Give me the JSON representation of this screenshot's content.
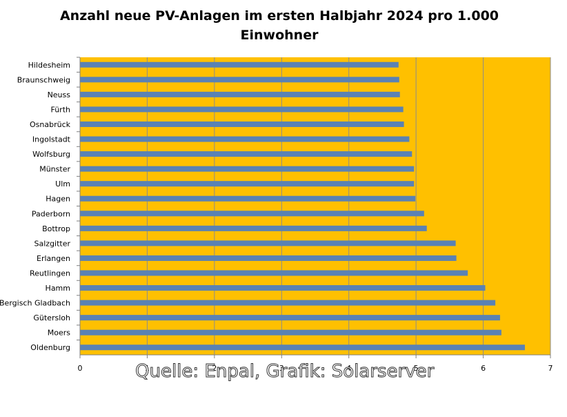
{
  "chart_data": {
    "type": "bar",
    "orientation": "horizontal",
    "title_line1": "Anzahl neue PV-Anlagen im ersten Halbjahr 2024 pro 1.000",
    "title_line2": "Einwohner",
    "categories": [
      "Hildesheim",
      "Braunschweig",
      "Neuss",
      "Fürth",
      "Osnabrück",
      "Ingolstadt",
      "Wolfsburg",
      "Münster",
      "Ulm",
      "Hagen",
      "Paderborn",
      "Bottrop",
      "Salzgitter",
      "Erlangen",
      "Reutlingen",
      "Hamm",
      "Bergisch Gladbach",
      "Gütersloh",
      "Moers",
      "Oldenburg"
    ],
    "values": [
      4.74,
      4.75,
      4.76,
      4.81,
      4.82,
      4.9,
      4.94,
      4.97,
      4.97,
      4.99,
      5.12,
      5.16,
      5.59,
      5.6,
      5.77,
      6.03,
      6.18,
      6.25,
      6.27,
      6.62
    ],
    "xlim": [
      0,
      7
    ],
    "xticks": [
      "0",
      "1",
      "2",
      "3",
      "4",
      "5",
      "6",
      "7"
    ],
    "grid": true,
    "legend": false,
    "source": "Quelle: Enpal, Grafik: Solarserver"
  },
  "colors": {
    "plot_background": "#FFC000",
    "bar": "#5A82B4",
    "gridline": "#8C8C8C",
    "axis": "#7F7F7F"
  }
}
